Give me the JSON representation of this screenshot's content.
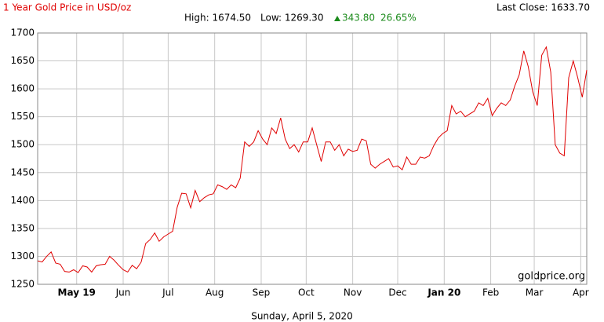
{
  "chart_data": {
    "type": "line",
    "title": "1 Year Gold Price in USD/oz",
    "last_close": "Last Close: 1633.70",
    "high": "High: 1674.50",
    "low": "Low: 1269.30",
    "change": "343.80",
    "change_pct": "26.65%",
    "watermark": "goldprice.org",
    "footer": "Sunday, April 5, 2020",
    "x": [
      0,
      3,
      6,
      9,
      12,
      15,
      18,
      21,
      24,
      27,
      30,
      33,
      36,
      39,
      42,
      45,
      48,
      51,
      54,
      57,
      60,
      63,
      66,
      69,
      72,
      75,
      78,
      81,
      84,
      87,
      90,
      93,
      96,
      99,
      102,
      105,
      108,
      111,
      114,
      117,
      120,
      123,
      126,
      129,
      132,
      135,
      138,
      141,
      144,
      147,
      150,
      153,
      156,
      159,
      162,
      165,
      168,
      171,
      174,
      177,
      180,
      183,
      186,
      189,
      192,
      195,
      198,
      201,
      204,
      207,
      210,
      213,
      216,
      219,
      222,
      225,
      228,
      231,
      234,
      237,
      240,
      243,
      246,
      249,
      252,
      255,
      258,
      261,
      264,
      267,
      270,
      273,
      276,
      279,
      282,
      285,
      288,
      291,
      294,
      297,
      300,
      303,
      306,
      309,
      312,
      315,
      318,
      321,
      324,
      327,
      330,
      333,
      336,
      339,
      342,
      345,
      348,
      351,
      354,
      357,
      360,
      363,
      366
    ],
    "series": [
      {
        "color": "#e00000",
        "values": [
          1292,
          1290,
          1300,
          1308,
          1288,
          1286,
          1273,
          1272,
          1276,
          1271,
          1283,
          1281,
          1272,
          1283,
          1285,
          1286,
          1300,
          1293,
          1284,
          1276,
          1272,
          1284,
          1278,
          1290,
          1323,
          1330,
          1342,
          1327,
          1335,
          1340,
          1345,
          1388,
          1413,
          1412,
          1387,
          1418,
          1398,
          1405,
          1410,
          1412,
          1428,
          1425,
          1420,
          1428,
          1423,
          1440,
          1505,
          1497,
          1505,
          1525,
          1510,
          1500,
          1530,
          1520,
          1548,
          1510,
          1493,
          1500,
          1487,
          1505,
          1505,
          1530,
          1500,
          1470,
          1505,
          1505,
          1490,
          1500,
          1480,
          1492,
          1488,
          1490,
          1510,
          1507,
          1465,
          1458,
          1465,
          1470,
          1475,
          1460,
          1462,
          1455,
          1478,
          1465,
          1465,
          1478,
          1476,
          1480,
          1498,
          1512,
          1520,
          1525,
          1570,
          1555,
          1560,
          1550,
          1555,
          1560,
          1575,
          1570,
          1583,
          1552,
          1565,
          1575,
          1570,
          1580,
          1605,
          1625,
          1668,
          1640,
          1595,
          1570,
          1660,
          1675,
          1630,
          1500,
          1485,
          1480,
          1620,
          1650,
          1620,
          1585,
          1633.7
        ]
      }
    ],
    "xlim": [
      0,
      366
    ],
    "xticks": [
      {
        "value": 26,
        "label": "May 19"
      },
      {
        "value": 57,
        "label": "Jun"
      },
      {
        "value": 87,
        "label": "Jul"
      },
      {
        "value": 118,
        "label": "Aug"
      },
      {
        "value": 149,
        "label": "Sep"
      },
      {
        "value": 179,
        "label": "Oct"
      },
      {
        "value": 210,
        "label": "Nov"
      },
      {
        "value": 240,
        "label": "Dec"
      },
      {
        "value": 271,
        "label": "Jan 20"
      },
      {
        "value": 302,
        "label": "Feb"
      },
      {
        "value": 331,
        "label": "Mar"
      },
      {
        "value": 362,
        "label": "Apr"
      }
    ],
    "ylim": [
      1250,
      1700
    ],
    "yticks": [
      1250,
      1300,
      1350,
      1400,
      1450,
      1500,
      1550,
      1600,
      1650,
      1700
    ],
    "grid": true
  }
}
